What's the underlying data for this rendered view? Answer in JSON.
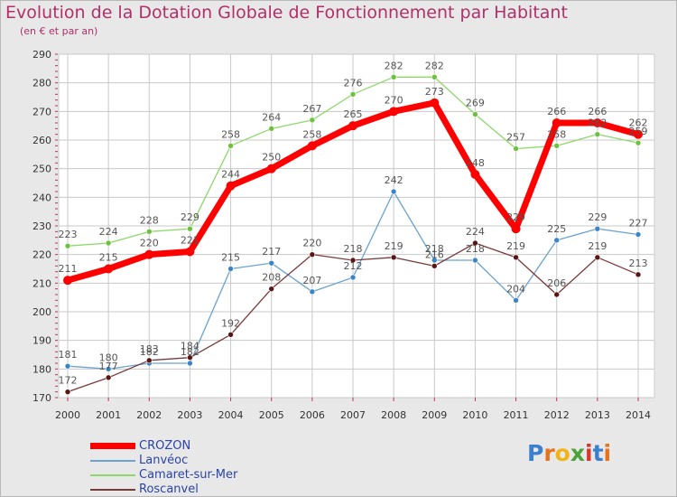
{
  "title": "Evolution de la Dotation Globale de Fonctionnement par Habitant",
  "subtitle": "(en € et par an)",
  "logo_text": "Proxiti",
  "colors": {
    "background": "#e8e8e8",
    "plot_bg": "#ffffff",
    "grid": "#c8c8c8",
    "axis_text": "#333333",
    "title": "#b0306a",
    "legend_text": "#2a44a8",
    "tick_marks": "#c0305a"
  },
  "chart_data": {
    "type": "line",
    "title": "Evolution de la Dotation Globale de Fonctionnement par Habitant",
    "subtitle": "(en € et par an)",
    "xlabel": "",
    "ylabel": "",
    "ylim": [
      170,
      290
    ],
    "yticks": [
      170,
      180,
      190,
      200,
      210,
      220,
      230,
      240,
      250,
      260,
      270,
      280,
      290
    ],
    "grid": true,
    "legend_position": "bottom-left",
    "categories": [
      "2000",
      "2001",
      "2002",
      "2003",
      "2004",
      "2005",
      "2006",
      "2007",
      "2008",
      "2009",
      "2010",
      "2011",
      "2012",
      "2013",
      "2014"
    ],
    "series": [
      {
        "name": "CROZON",
        "color": "#ff0000",
        "marker": "#ff0000",
        "width": 7,
        "values": [
          211,
          215,
          220,
          221,
          244,
          250,
          258,
          265,
          270,
          273,
          248,
          229,
          266,
          266,
          262
        ],
        "labels": [
          "211",
          "215",
          "220",
          "221",
          "244",
          "250",
          "258",
          "265",
          "270",
          "273",
          "248",
          "229",
          "266",
          "266",
          "262"
        ]
      },
      {
        "name": "Lanvéoc",
        "color": "#6aa3d0",
        "marker": "#3a84c8",
        "width": 1.3,
        "values": [
          181,
          180,
          182,
          182,
          215,
          217,
          207,
          212,
          242,
          218,
          218,
          204,
          225,
          229,
          227
        ],
        "labels": [
          "181",
          "180",
          "182",
          "182",
          "215",
          "217",
          "207",
          "212",
          "242",
          "218",
          "218",
          "204",
          "225",
          "229",
          "227"
        ]
      },
      {
        "name": "Camaret-sur-Mer",
        "color": "#8ed86a",
        "marker": "#6cc23c",
        "width": 1.3,
        "values": [
          223,
          224,
          228,
          229,
          258,
          264,
          267,
          276,
          282,
          282,
          269,
          257,
          258,
          262,
          259
        ],
        "labels": [
          "223",
          "224",
          "228",
          "229",
          "258",
          "264",
          "267",
          "276",
          "282",
          "282",
          "269",
          "257",
          "258",
          "262",
          "259"
        ]
      },
      {
        "name": "Roscanvel",
        "color": "#7a3a3a",
        "marker": "#5a1414",
        "width": 1.3,
        "values": [
          172,
          177,
          183,
          184,
          192,
          208,
          220,
          218,
          219,
          216,
          224,
          219,
          206,
          219,
          213
        ],
        "labels": [
          "172",
          "177",
          "183",
          "184",
          "192",
          "208",
          "220",
          "218",
          "219",
          "216",
          "224",
          "219",
          "206",
          "219",
          "213"
        ]
      }
    ]
  }
}
